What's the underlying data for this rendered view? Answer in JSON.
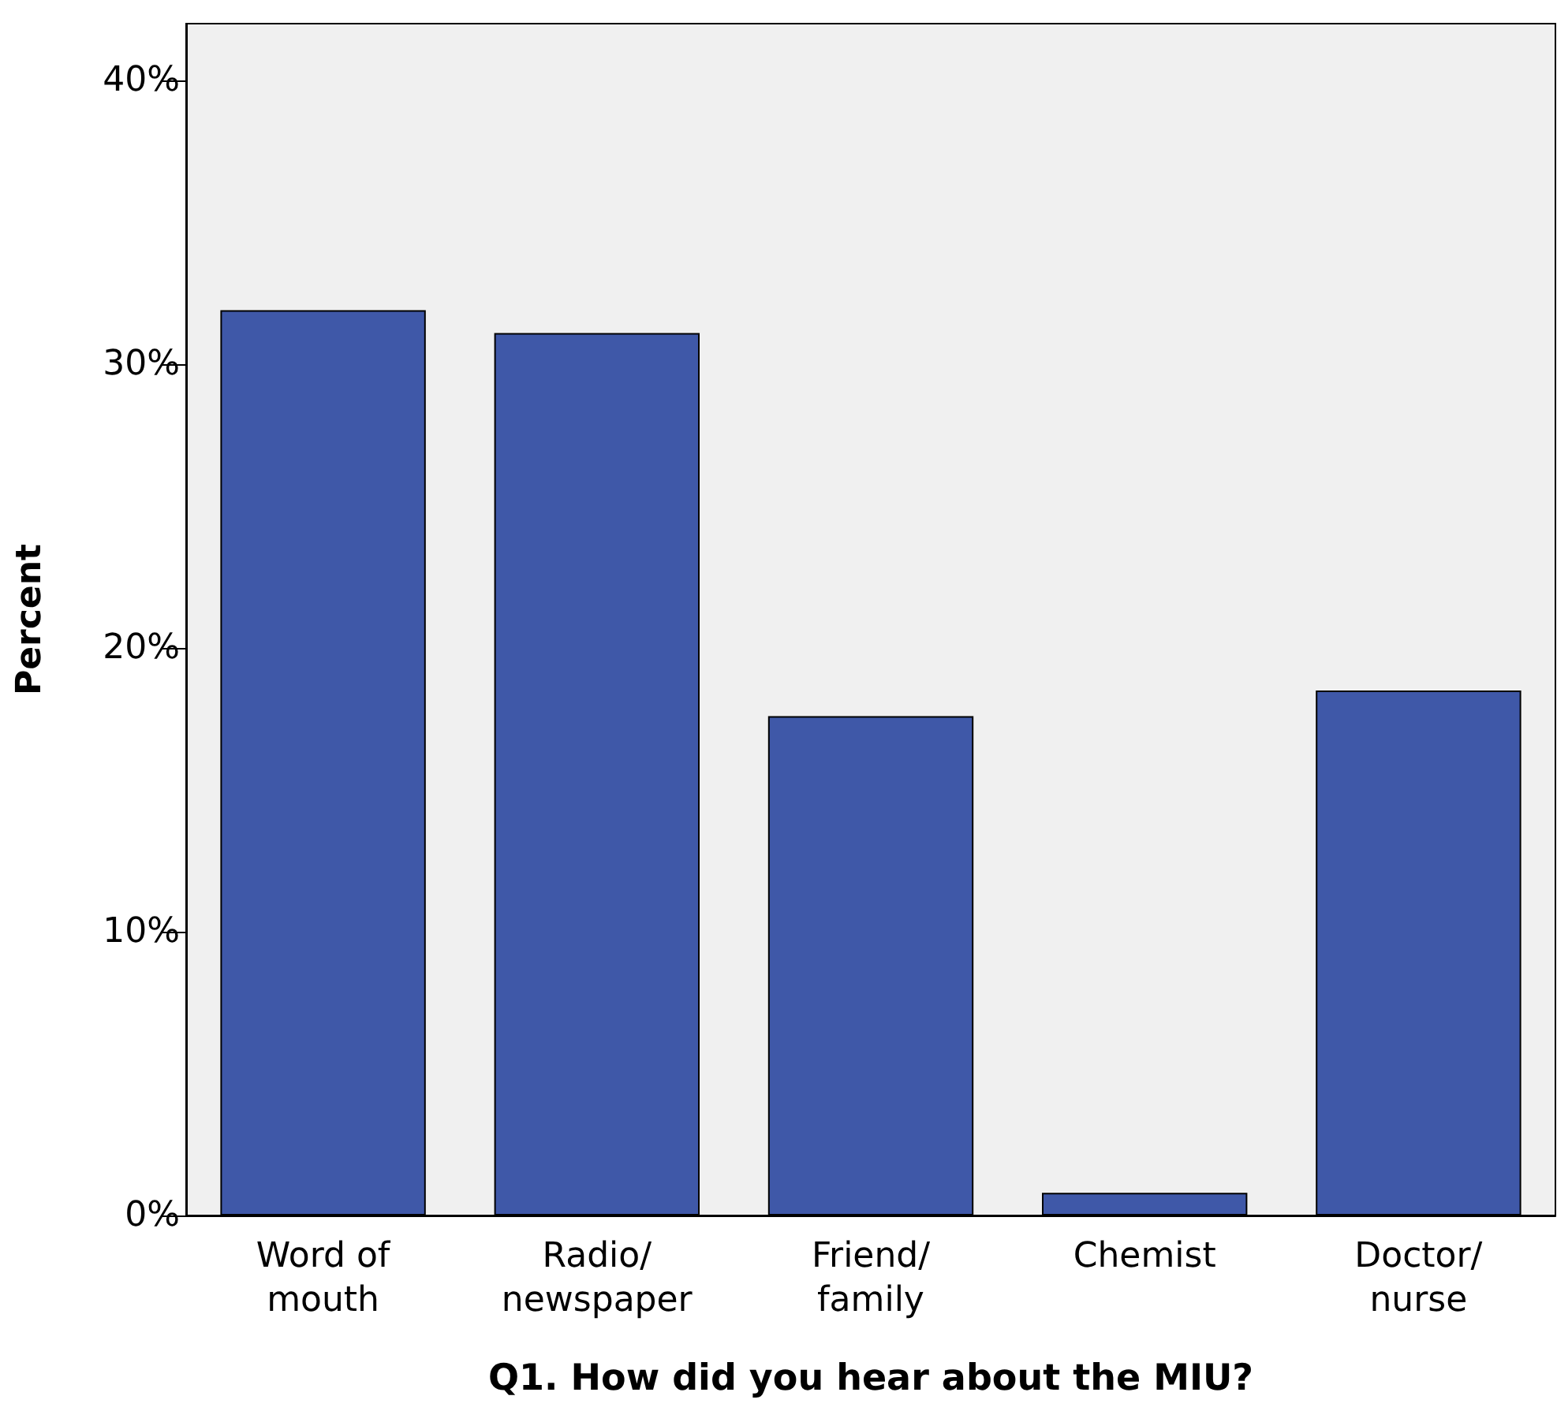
{
  "chart_data": {
    "type": "bar",
    "xlabel": "Q1. How did you hear about the MIU?",
    "ylabel": "Percent",
    "categories": [
      "Word of\nmouth",
      "Radio/\nnewspaper",
      "Friend/\nfamily",
      "Chemist",
      "Doctor/\nnurse"
    ],
    "values": [
      31.9,
      31.1,
      17.6,
      0.8,
      18.5
    ],
    "color": "#3f58a8",
    "ylim": [
      0,
      42
    ],
    "yticks": [
      {
        "value": 0,
        "label": "0%"
      },
      {
        "value": 10,
        "label": "10%"
      },
      {
        "value": 20,
        "label": "20%"
      },
      {
        "value": 30,
        "label": "30%"
      },
      {
        "value": 40,
        "label": "40%"
      }
    ],
    "grid": false
  }
}
